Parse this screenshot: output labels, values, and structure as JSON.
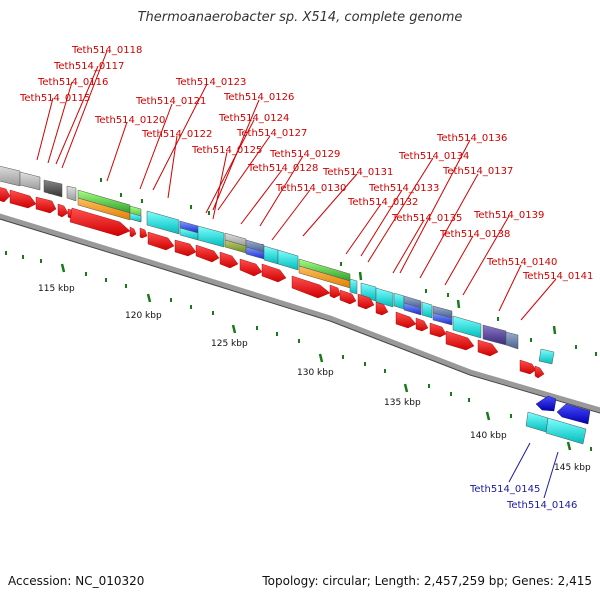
{
  "title": "Thermoanaerobacter sp. X514, complete genome",
  "accession": "Accession: NC_010320",
  "topology": "Topology: circular; Length: 2,457,259 bp; Genes: 2,415",
  "colors": {
    "forward_cds": "#e8000b",
    "reverse_cds": "#0000cc",
    "backbone": "#999999",
    "ticks": "#1a7a1a",
    "label_forward": "#d40000",
    "label_reverse": "#1a1aa6"
  },
  "kbp_labels": [
    "115 kbp",
    "120 kbp",
    "125 kbp",
    "130 kbp",
    "135 kbp",
    "140 kbp",
    "145 kbp"
  ],
  "gene_labels_forward": [
    "Teth514_0118",
    "Teth514_0117",
    "Teth514_0116",
    "Teth514_0115",
    "Teth514_0123",
    "Teth514_0121",
    "Teth514_0126",
    "Teth514_0120",
    "Teth514_0124",
    "Teth514_0122",
    "Teth514_0127",
    "Teth514_0125",
    "Teth514_0129",
    "Teth514_0128",
    "Teth514_0131",
    "Teth514_0130",
    "Teth514_0136",
    "Teth514_0134",
    "Teth514_0137",
    "Teth514_0133",
    "Teth514_0132",
    "Teth514_0135",
    "Teth514_0139",
    "Teth514_0138",
    "Teth514_0140",
    "Teth514_0141"
  ],
  "gene_labels_reverse": [
    "Teth514_0145",
    "Teth514_0146"
  ]
}
